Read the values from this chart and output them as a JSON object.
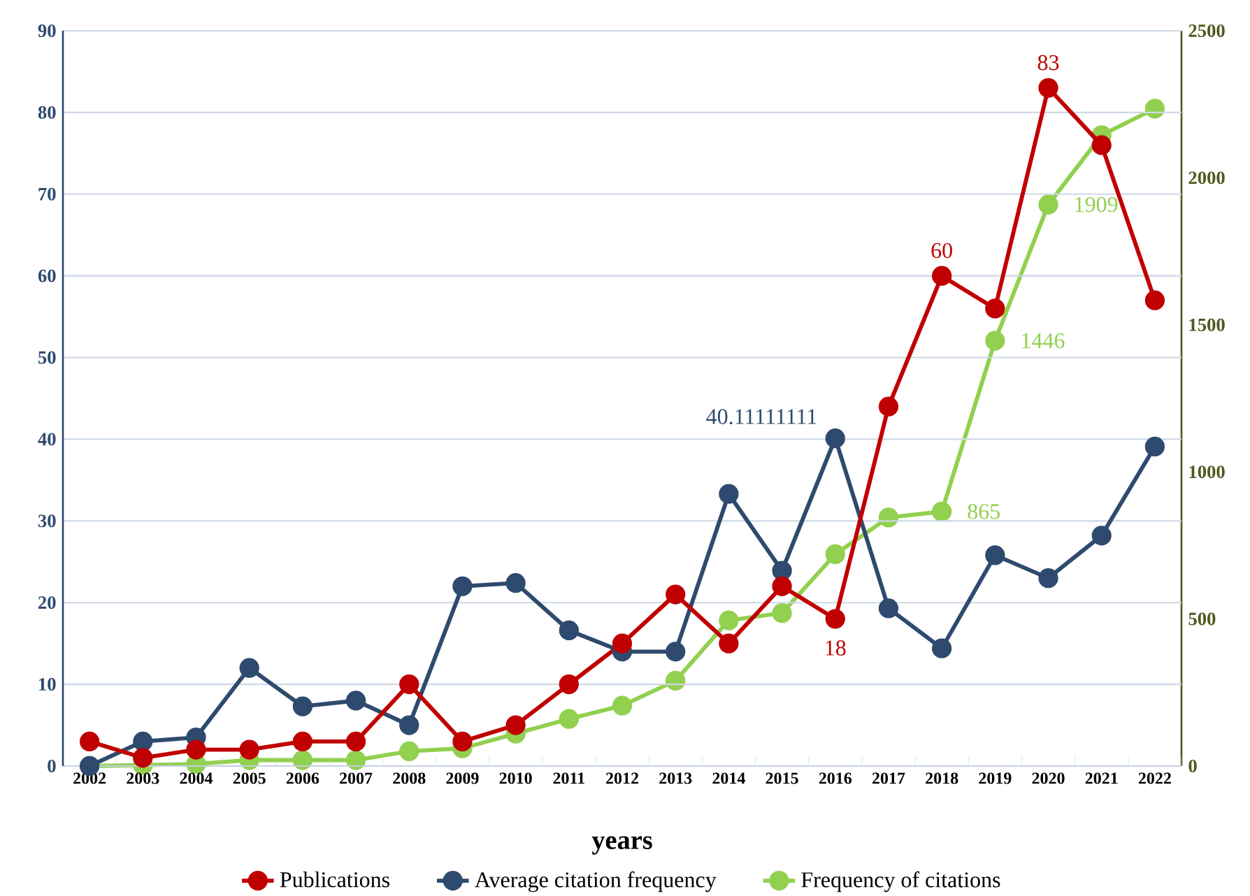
{
  "chart_data": {
    "type": "line",
    "xlabel": "years",
    "categories": [
      "2002",
      "2003",
      "2004",
      "2005",
      "2006",
      "2007",
      "2008",
      "2009",
      "2010",
      "2011",
      "2012",
      "2013",
      "2014",
      "2015",
      "2016",
      "2017",
      "2018",
      "2019",
      "2020",
      "2021",
      "2022"
    ],
    "series": [
      {
        "name": "Publications",
        "color": "#c00000",
        "values": [
          3,
          1,
          2,
          2,
          3,
          3,
          10,
          3,
          5,
          10,
          15,
          21,
          15,
          22,
          18,
          44,
          60,
          56,
          83,
          76,
          57
        ],
        "value_labels": [
          null,
          null,
          null,
          null,
          null,
          null,
          null,
          null,
          null,
          null,
          null,
          null,
          null,
          null,
          "18",
          null,
          "60",
          null,
          "83",
          null,
          null
        ]
      },
      {
        "name": "Average citation frequency",
        "color": "#2e4a6e",
        "values": [
          0,
          3,
          3.5,
          12,
          7.3,
          8,
          5,
          22,
          22.4,
          16.6,
          14,
          14,
          33.3,
          23.9,
          40.11111111,
          19.3,
          14.4,
          25.8,
          23,
          28.2,
          39.1
        ],
        "value_labels": [
          null,
          null,
          null,
          null,
          null,
          null,
          null,
          null,
          null,
          null,
          null,
          null,
          null,
          null,
          "40.11111111",
          null,
          null,
          null,
          null,
          null,
          null
        ]
      },
      {
        "name": "Frequency of citations",
        "color": "#92d050",
        "axis": "y2",
        "values": [
          0,
          3,
          7,
          20,
          20,
          20,
          50,
          60,
          110,
          160,
          205,
          290,
          495,
          520,
          720,
          845,
          865,
          1446,
          1909,
          2145,
          2235
        ],
        "value_labels": [
          null,
          null,
          null,
          null,
          null,
          null,
          null,
          null,
          null,
          null,
          null,
          null,
          null,
          null,
          null,
          null,
          "865",
          "1446",
          "1909",
          null,
          null
        ]
      }
    ],
    "ylim": [
      0,
      90
    ],
    "yticks": [
      0,
      10,
      20,
      30,
      40,
      50,
      60,
      70,
      80,
      90
    ],
    "y2lim": [
      0,
      2500
    ],
    "y2ticks": [
      0,
      500,
      1000,
      1500,
      2000,
      2500
    ],
    "grid": "y",
    "legend": "bottom",
    "marker": "circle",
    "line_style": "solid"
  }
}
